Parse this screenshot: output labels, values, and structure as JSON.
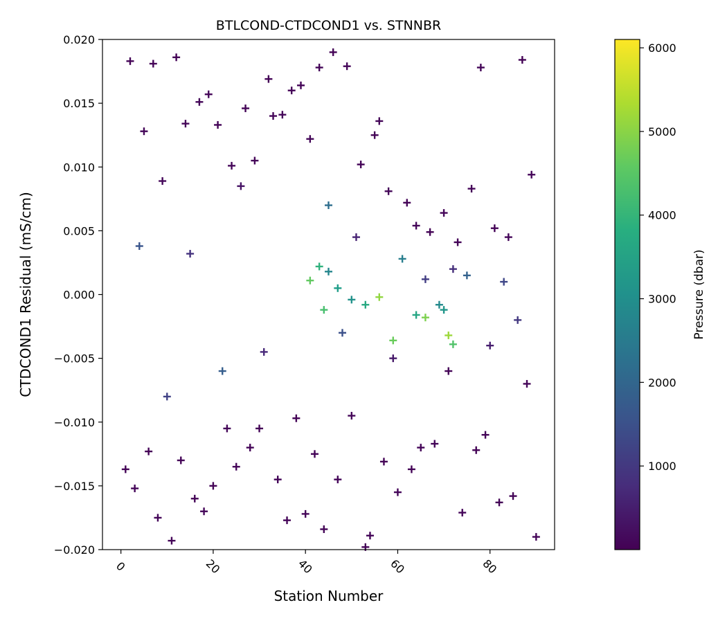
{
  "chart_data": {
    "type": "scatter",
    "title": "BTLCOND-CTDCOND1 vs. STNNBR",
    "xlabel": "Station Number",
    "ylabel": "CTDCOND1 Residual (mS/cm)",
    "xlim": [
      -4,
      94
    ],
    "ylim": [
      -0.02,
      0.02
    ],
    "x_ticks": [
      0,
      20,
      40,
      60,
      80
    ],
    "y_ticks": [
      -0.02,
      -0.015,
      -0.01,
      -0.005,
      0.0,
      0.005,
      0.01,
      0.015,
      0.02
    ],
    "x_tick_labels": [
      "0",
      "20",
      "40",
      "60",
      "80"
    ],
    "y_tick_labels": [
      "−0.020",
      "−0.015",
      "−0.010",
      "−0.005",
      "0.000",
      "0.005",
      "0.010",
      "0.015",
      "0.020"
    ],
    "marker": "+",
    "grid": false,
    "colorbar": {
      "label": "Pressure (dbar)",
      "colormap": "viridis",
      "range": [
        0,
        6100
      ],
      "ticks": [
        1000,
        2000,
        3000,
        4000,
        5000,
        6000
      ],
      "tick_labels": [
        "1000",
        "2000",
        "3000",
        "4000",
        "5000",
        "6000"
      ]
    },
    "series": [
      {
        "x": [
          2,
          5,
          7,
          9,
          12,
          14,
          17,
          19,
          21,
          24,
          27,
          29,
          32,
          33,
          35,
          37,
          39,
          41,
          43,
          46,
          49,
          52,
          55,
          56,
          58,
          62,
          64,
          67,
          70,
          73,
          76,
          78,
          81,
          84,
          87,
          89,
          1,
          3,
          6,
          8,
          11,
          13,
          16,
          18,
          20,
          23,
          25,
          28,
          30,
          34,
          36,
          38,
          40,
          42,
          44,
          47,
          50,
          53,
          54,
          57,
          60,
          63,
          65,
          68,
          71,
          74,
          77,
          79,
          82,
          85,
          88,
          90,
          4,
          10,
          15,
          22,
          26,
          31,
          45,
          48,
          51,
          59,
          61,
          66,
          69,
          72,
          75,
          80,
          83,
          86,
          41,
          43,
          44,
          47,
          53,
          56,
          59,
          64,
          66,
          70,
          71,
          72,
          45,
          50
        ],
        "y": [
          0.0183,
          0.0128,
          0.0181,
          0.0089,
          0.0186,
          0.0134,
          0.0151,
          0.0157,
          0.0133,
          0.0101,
          0.0146,
          0.0105,
          0.0169,
          0.014,
          0.0141,
          0.016,
          0.0164,
          0.0122,
          0.0178,
          0.019,
          0.0179,
          0.0102,
          0.0125,
          0.0136,
          0.0081,
          0.0072,
          0.0054,
          0.0049,
          0.0064,
          0.0041,
          0.0083,
          0.0178,
          0.0052,
          0.0045,
          0.0184,
          0.0094,
          -0.0137,
          -0.0152,
          -0.0123,
          -0.0175,
          -0.0193,
          -0.013,
          -0.016,
          -0.017,
          -0.015,
          -0.0105,
          -0.0135,
          -0.012,
          -0.0105,
          -0.0145,
          -0.0177,
          -0.0097,
          -0.0172,
          -0.0125,
          -0.0184,
          -0.0145,
          -0.0095,
          -0.0198,
          -0.0189,
          -0.0131,
          -0.0155,
          -0.0137,
          -0.012,
          -0.0117,
          -0.006,
          -0.0171,
          -0.0122,
          -0.011,
          -0.0163,
          -0.0158,
          -0.007,
          -0.019,
          0.0038,
          -0.008,
          0.0032,
          -0.006,
          0.0085,
          -0.0045,
          0.007,
          -0.003,
          0.0045,
          -0.005,
          0.0028,
          0.0012,
          -0.0008,
          0.002,
          0.0015,
          -0.004,
          0.001,
          -0.002,
          0.0011,
          0.0022,
          -0.0012,
          0.0005,
          -0.0008,
          -0.0002,
          -0.0036,
          -0.0016,
          -0.0018,
          -0.0012,
          -0.0032,
          -0.0039,
          0.0018,
          -0.0004
        ],
        "pressure": [
          50,
          80,
          60,
          120,
          40,
          90,
          70,
          100,
          55,
          85,
          65,
          95,
          45,
          75,
          110,
          50,
          60,
          80,
          70,
          40,
          90,
          55,
          65,
          85,
          100,
          60,
          75,
          45,
          95,
          50,
          70,
          80,
          60,
          110,
          40,
          90,
          50,
          70,
          60,
          80,
          100,
          55,
          65,
          85,
          45,
          75,
          95,
          50,
          60,
          80,
          70,
          40,
          90,
          55,
          65,
          85,
          100,
          60,
          75,
          45,
          95,
          50,
          70,
          80,
          60,
          110,
          40,
          90,
          55,
          65,
          85,
          75,
          1600,
          1200,
          900,
          1800,
          300,
          700,
          2200,
          1500,
          600,
          400,
          2600,
          1100,
          2900,
          800,
          1900,
          500,
          1300,
          1000,
          4600,
          3900,
          4300,
          3400,
          3700,
          5100,
          4700,
          3600,
          4900,
          3200,
          5200,
          4400,
          2800,
          3100
        ]
      }
    ]
  }
}
